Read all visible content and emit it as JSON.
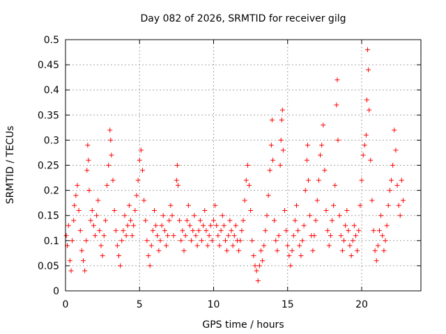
{
  "chart_data": {
    "type": "scatter",
    "title": "Day 082 of 2026, SRMTID for receiver gilg",
    "xlabel": "GPS time / hours",
    "ylabel": "SRMTID / TECUs",
    "xlim": [
      0,
      24
    ],
    "ylim": [
      0,
      0.5
    ],
    "xticks": [
      0,
      5,
      10,
      15,
      20
    ],
    "xtick_labels": [
      "0",
      "5",
      "10",
      "15",
      "20"
    ],
    "yticks": [
      0,
      0.05,
      0.1,
      0.15,
      0.2,
      0.25,
      0.3,
      0.35,
      0.4,
      0.45,
      0.5
    ],
    "ytick_labels": [
      "0",
      "0.05",
      "0.1",
      "0.15",
      "0.2",
      "0.25",
      "0.3",
      "0.35",
      "0.4",
      "0.45",
      "0.5"
    ],
    "grid": true,
    "marker": "+",
    "color": "#ff0000",
    "series": [
      {
        "name": "SRMTID",
        "points": [
          [
            0.05,
            0.11
          ],
          [
            0.12,
            0.09
          ],
          [
            0.2,
            0.13
          ],
          [
            0.3,
            0.06
          ],
          [
            0.38,
            0.04
          ],
          [
            0.45,
            0.1
          ],
          [
            0.55,
            0.14
          ],
          [
            0.6,
            0.17
          ],
          [
            0.7,
            0.19
          ],
          [
            0.8,
            0.21
          ],
          [
            0.9,
            0.16
          ],
          [
            1.0,
            0.12
          ],
          [
            1.1,
            0.08
          ],
          [
            1.2,
            0.06
          ],
          [
            1.3,
            0.04
          ],
          [
            1.4,
            0.1
          ],
          [
            1.45,
            0.24
          ],
          [
            1.5,
            0.29
          ],
          [
            1.55,
            0.26
          ],
          [
            1.6,
            0.2
          ],
          [
            1.7,
            0.14
          ],
          [
            1.8,
            0.16
          ],
          [
            1.9,
            0.13
          ],
          [
            2.0,
            0.11
          ],
          [
            2.1,
            0.15
          ],
          [
            2.2,
            0.18
          ],
          [
            2.3,
            0.12
          ],
          [
            2.4,
            0.09
          ],
          [
            2.5,
            0.07
          ],
          [
            2.6,
            0.11
          ],
          [
            2.7,
            0.14
          ],
          [
            2.8,
            0.21
          ],
          [
            2.9,
            0.25
          ],
          [
            3.0,
            0.32
          ],
          [
            3.05,
            0.3
          ],
          [
            3.1,
            0.27
          ],
          [
            3.2,
            0.22
          ],
          [
            3.3,
            0.16
          ],
          [
            3.4,
            0.12
          ],
          [
            3.5,
            0.09
          ],
          [
            3.6,
            0.07
          ],
          [
            3.7,
            0.05
          ],
          [
            3.8,
            0.1
          ],
          [
            3.9,
            0.12
          ],
          [
            4.0,
            0.15
          ],
          [
            4.1,
            0.11
          ],
          [
            4.2,
            0.13
          ],
          [
            4.3,
            0.17
          ],
          [
            4.4,
            0.14
          ],
          [
            4.5,
            0.11
          ],
          [
            4.6,
            0.13
          ],
          [
            4.7,
            0.16
          ],
          [
            4.8,
            0.19
          ],
          [
            4.9,
            0.22
          ],
          [
            5.0,
            0.26
          ],
          [
            5.1,
            0.28
          ],
          [
            5.2,
            0.24
          ],
          [
            5.3,
            0.18
          ],
          [
            5.4,
            0.14
          ],
          [
            5.5,
            0.1
          ],
          [
            5.6,
            0.07
          ],
          [
            5.7,
            0.05
          ],
          [
            5.8,
            0.09
          ],
          [
            5.9,
            0.12
          ],
          [
            6.0,
            0.16
          ],
          [
            6.1,
            0.13
          ],
          [
            6.2,
            0.11
          ],
          [
            6.3,
            0.08
          ],
          [
            6.4,
            0.1
          ],
          [
            6.5,
            0.13
          ],
          [
            6.6,
            0.15
          ],
          [
            6.7,
            0.12
          ],
          [
            6.8,
            0.09
          ],
          [
            6.9,
            0.11
          ],
          [
            7.0,
            0.14
          ],
          [
            7.1,
            0.17
          ],
          [
            7.2,
            0.15
          ],
          [
            7.3,
            0.11
          ],
          [
            7.5,
            0.22
          ],
          [
            7.55,
            0.25
          ],
          [
            7.6,
            0.21
          ],
          [
            7.7,
            0.14
          ],
          [
            7.8,
            0.1
          ],
          [
            7.9,
            0.12
          ],
          [
            8.0,
            0.08
          ],
          [
            8.1,
            0.11
          ],
          [
            8.2,
            0.14
          ],
          [
            8.3,
            0.17
          ],
          [
            8.4,
            0.13
          ],
          [
            8.5,
            0.1
          ],
          [
            8.6,
            0.12
          ],
          [
            8.7,
            0.15
          ],
          [
            8.8,
            0.11
          ],
          [
            8.9,
            0.09
          ],
          [
            9.0,
            0.12
          ],
          [
            9.1,
            0.14
          ],
          [
            9.2,
            0.1
          ],
          [
            9.3,
            0.13
          ],
          [
            9.4,
            0.16
          ],
          [
            9.5,
            0.12
          ],
          [
            9.6,
            0.09
          ],
          [
            9.7,
            0.11
          ],
          [
            9.8,
            0.13
          ],
          [
            9.9,
            0.1
          ],
          [
            10.0,
            0.14
          ],
          [
            10.1,
            0.17
          ],
          [
            10.2,
            0.13
          ],
          [
            10.3,
            0.11
          ],
          [
            10.4,
            0.09
          ],
          [
            10.5,
            0.12
          ],
          [
            10.6,
            0.15
          ],
          [
            10.7,
            0.13
          ],
          [
            10.8,
            0.1
          ],
          [
            10.9,
            0.08
          ],
          [
            11.0,
            0.11
          ],
          [
            11.1,
            0.14
          ],
          [
            11.2,
            0.12
          ],
          [
            11.3,
            0.09
          ],
          [
            11.4,
            0.11
          ],
          [
            11.5,
            0.13
          ],
          [
            11.6,
            0.1
          ],
          [
            11.7,
            0.08
          ],
          [
            11.8,
            0.1
          ],
          [
            11.9,
            0.12
          ],
          [
            12.0,
            0.14
          ],
          [
            12.1,
            0.18
          ],
          [
            12.2,
            0.22
          ],
          [
            12.3,
            0.25
          ],
          [
            12.4,
            0.21
          ],
          [
            12.5,
            0.16
          ],
          [
            12.6,
            0.1
          ],
          [
            12.7,
            0.07
          ],
          [
            12.8,
            0.05
          ],
          [
            12.9,
            0.04
          ],
          [
            13.0,
            0.02
          ],
          [
            13.1,
            0.05
          ],
          [
            13.2,
            0.08
          ],
          [
            13.3,
            0.06
          ],
          [
            13.4,
            0.09
          ],
          [
            13.5,
            0.12
          ],
          [
            13.6,
            0.15
          ],
          [
            13.7,
            0.19
          ],
          [
            13.8,
            0.24
          ],
          [
            13.9,
            0.29
          ],
          [
            13.95,
            0.34
          ],
          [
            14.0,
            0.26
          ],
          [
            14.1,
            0.14
          ],
          [
            14.2,
            0.1
          ],
          [
            14.3,
            0.08
          ],
          [
            14.4,
            0.11
          ],
          [
            14.5,
            0.25
          ],
          [
            14.55,
            0.3
          ],
          [
            14.6,
            0.34
          ],
          [
            14.65,
            0.36
          ],
          [
            14.7,
            0.28
          ],
          [
            14.8,
            0.16
          ],
          [
            14.9,
            0.12
          ],
          [
            15.0,
            0.09
          ],
          [
            15.1,
            0.07
          ],
          [
            15.2,
            0.05
          ],
          [
            15.3,
            0.08
          ],
          [
            15.4,
            0.11
          ],
          [
            15.5,
            0.14
          ],
          [
            15.6,
            0.17
          ],
          [
            15.7,
            0.12
          ],
          [
            15.8,
            0.09
          ],
          [
            15.9,
            0.07
          ],
          [
            16.0,
            0.1
          ],
          [
            16.1,
            0.13
          ],
          [
            16.2,
            0.2
          ],
          [
            16.3,
            0.26
          ],
          [
            16.35,
            0.29
          ],
          [
            16.4,
            0.22
          ],
          [
            16.5,
            0.15
          ],
          [
            16.6,
            0.11
          ],
          [
            16.7,
            0.08
          ],
          [
            16.8,
            0.11
          ],
          [
            16.9,
            0.14
          ],
          [
            17.0,
            0.18
          ],
          [
            17.1,
            0.22
          ],
          [
            17.2,
            0.27
          ],
          [
            17.3,
            0.29
          ],
          [
            17.4,
            0.33
          ],
          [
            17.5,
            0.24
          ],
          [
            17.6,
            0.16
          ],
          [
            17.7,
            0.12
          ],
          [
            17.8,
            0.09
          ],
          [
            17.9,
            0.11
          ],
          [
            18.0,
            0.14
          ],
          [
            18.1,
            0.17
          ],
          [
            18.2,
            0.21
          ],
          [
            18.3,
            0.37
          ],
          [
            18.35,
            0.42
          ],
          [
            18.4,
            0.3
          ],
          [
            18.5,
            0.15
          ],
          [
            18.6,
            0.11
          ],
          [
            18.7,
            0.08
          ],
          [
            18.8,
            0.1
          ],
          [
            18.9,
            0.13
          ],
          [
            19.0,
            0.16
          ],
          [
            19.1,
            0.12
          ],
          [
            19.2,
            0.09
          ],
          [
            19.3,
            0.07
          ],
          [
            19.4,
            0.1
          ],
          [
            19.5,
            0.13
          ],
          [
            19.6,
            0.11
          ],
          [
            19.7,
            0.08
          ],
          [
            19.8,
            0.12
          ],
          [
            19.9,
            0.17
          ],
          [
            20.0,
            0.22
          ],
          [
            20.1,
            0.27
          ],
          [
            20.2,
            0.29
          ],
          [
            20.3,
            0.31
          ],
          [
            20.35,
            0.38
          ],
          [
            20.4,
            0.48
          ],
          [
            20.45,
            0.44
          ],
          [
            20.5,
            0.36
          ],
          [
            20.6,
            0.26
          ],
          [
            20.7,
            0.18
          ],
          [
            20.8,
            0.12
          ],
          [
            20.9,
            0.08
          ],
          [
            21.0,
            0.06
          ],
          [
            21.1,
            0.09
          ],
          [
            21.2,
            0.12
          ],
          [
            21.3,
            0.15
          ],
          [
            21.4,
            0.11
          ],
          [
            21.5,
            0.08
          ],
          [
            21.6,
            0.1
          ],
          [
            21.7,
            0.13
          ],
          [
            21.8,
            0.17
          ],
          [
            21.9,
            0.2
          ],
          [
            22.0,
            0.22
          ],
          [
            22.1,
            0.25
          ],
          [
            22.2,
            0.32
          ],
          [
            22.3,
            0.28
          ],
          [
            22.4,
            0.21
          ],
          [
            22.5,
            0.17
          ],
          [
            22.6,
            0.15
          ],
          [
            22.7,
            0.22
          ],
          [
            22.8,
            0.18
          ]
        ]
      }
    ]
  }
}
